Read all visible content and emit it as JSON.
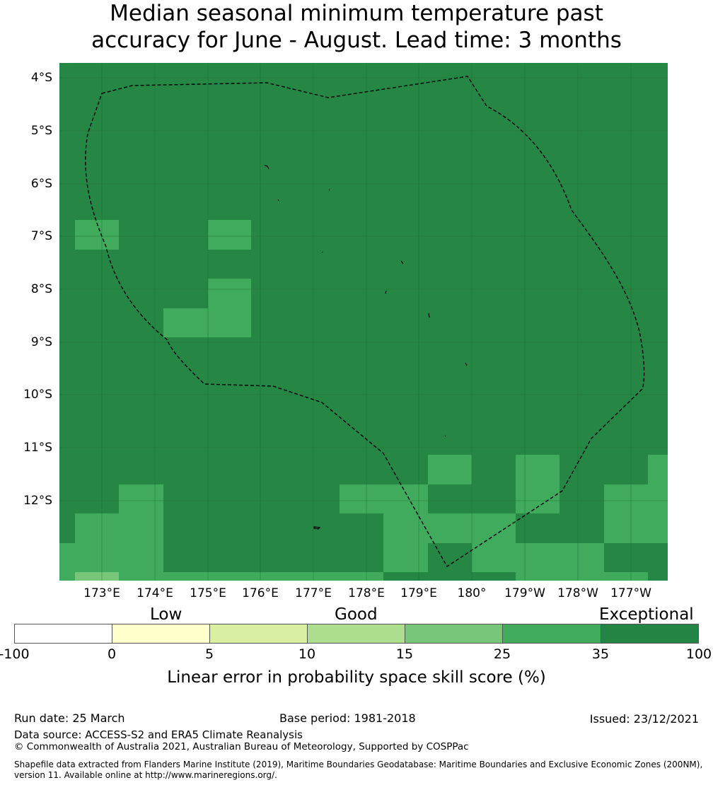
{
  "title_line1": "Median seasonal minimum temperature past",
  "title_line2": "accuracy for June - August. Lead time: 3 months",
  "map": {
    "lat_labels": [
      "4°S",
      "5°S",
      "6°S",
      "7°S",
      "8°S",
      "9°S",
      "10°S",
      "11°S",
      "12°S"
    ],
    "lon_labels": [
      "173°E",
      "174°E",
      "175°E",
      "176°E",
      "177°E",
      "178°E",
      "179°E",
      "180°",
      "179°W",
      "178°W",
      "177°W"
    ],
    "base_color": "#268744",
    "region_boundary": "dashed maritime boundary (EEZ)"
  },
  "legend": {
    "categories": [
      "Low",
      "Good",
      "Exceptional"
    ],
    "ticks": [
      "-100",
      "0",
      "5",
      "10",
      "15",
      "25",
      "35",
      "100"
    ],
    "colors": [
      "#ffffff",
      "#ffffcc",
      "#d9f0a3",
      "#addd8e",
      "#78c679",
      "#41ab5d",
      "#238443"
    ],
    "label": "Linear error in probability space skill score (%)"
  },
  "footer": {
    "run_date": "Run date: 25 March",
    "base_period": "Base period: 1981-2018",
    "issued": "Issued: 23/12/2021",
    "data_source": "Data source: ACCESS-S2 and ERA5 Climate Reanalysis",
    "copyright": "© Commonwealth of Australia 2021, Australian Bureau of Meteorology, Supported by COSPPac",
    "shapefile_line1": "Shapefile data extracted from Flanders Marine Institute (2019), Maritime Boundaries Geodatabase: Maritime Boundaries and Exclusive Economic Zones (200NM),",
    "shapefile_line2": "version 11. Available online at http://www.marineregions.org/."
  }
}
